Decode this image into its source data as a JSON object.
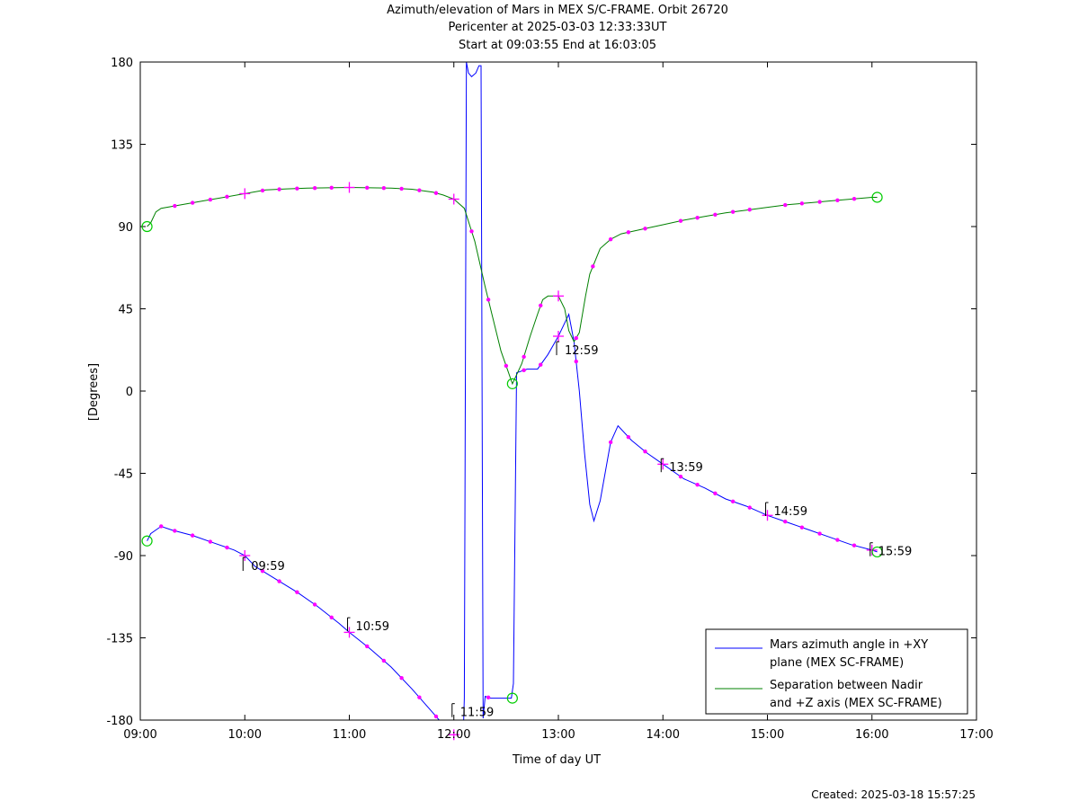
{
  "title": {
    "line1": "Azimuth/elevation of Mars in MEX S/C-FRAME.  Orbit 26720",
    "line2": "Pericenter at 2025-03-03 12:33:33UT",
    "line3": "Start at 09:03:55 End at 16:03:05"
  },
  "footer": "Created: 2025-03-18 15:57:25",
  "chart_data": {
    "type": "line",
    "xlabel": "Time of day UT",
    "ylabel": "[Degrees]",
    "xlim": [
      9,
      17
    ],
    "ylim": [
      -180,
      180
    ],
    "xticks": [
      9,
      10,
      11,
      12,
      13,
      14,
      15,
      16,
      17
    ],
    "xtick_labels": [
      "09:00",
      "10:00",
      "11:00",
      "12:00",
      "13:00",
      "14:00",
      "15:00",
      "16:00",
      "17:00"
    ],
    "yticks": [
      -180,
      -135,
      -90,
      -45,
      0,
      45,
      90,
      135,
      180
    ],
    "ytick_labels": [
      "-180",
      "-135",
      "-90",
      "-45",
      "0",
      "45",
      "90",
      "135",
      "180"
    ],
    "legend_position": "bottom-right",
    "series": [
      {
        "name": "Mars azimuth angle in +XY plane (MEX SC-FRAME)",
        "legend_lines": [
          "Mars azimuth angle in +XY",
          "plane (MEX SC-FRAME)"
        ],
        "color": "#0000ff",
        "x": [
          9.065,
          9.1,
          9.15,
          9.2,
          9.3,
          9.5,
          9.7,
          9.9,
          10.0,
          10.1,
          10.3,
          10.5,
          10.7,
          10.9,
          11.0,
          11.2,
          11.4,
          11.6,
          11.8,
          11.95,
          12.0,
          12.06,
          12.09,
          12.1,
          12.12,
          12.14,
          12.17,
          12.21,
          12.24,
          12.26,
          12.28,
          12.3,
          12.35,
          12.45,
          12.55,
          12.57,
          12.6,
          12.7,
          12.8,
          12.9,
          13.0,
          13.05,
          13.1,
          13.15,
          13.2,
          13.25,
          13.3,
          13.34,
          13.4,
          13.5,
          13.57,
          13.7,
          13.85,
          14.0,
          14.2,
          14.4,
          14.6,
          14.8,
          15.0,
          15.2,
          15.4,
          15.6,
          15.8,
          16.0,
          16.05
        ],
        "y": [
          -82,
          -78,
          -76,
          -74,
          -76,
          -79,
          -83,
          -87,
          -90,
          -96,
          -103,
          -110,
          -118,
          -127,
          -132,
          -141,
          -151,
          -163,
          -176,
          -186,
          -188,
          -190,
          -188,
          -168,
          180,
          174,
          172,
          174,
          178,
          178,
          -179,
          -167,
          -168,
          -168,
          -168,
          -160,
          10,
          12,
          12,
          20,
          30,
          36,
          42,
          27,
          0,
          -34,
          -62,
          -71,
          -60,
          -28,
          -19,
          -27,
          -34,
          -40,
          -48,
          -53,
          -59,
          -63,
          -68,
          -72,
          -76,
          -80,
          -84,
          -87,
          -88
        ]
      },
      {
        "name": "Separation between Nadir and +Z axis (MEX SC-FRAME)",
        "legend_lines": [
          "Separation between Nadir",
          "and +Z axis (MEX SC-FRAME)"
        ],
        "color": "#008000",
        "x": [
          9.065,
          9.1,
          9.15,
          9.2,
          9.4,
          9.6,
          9.8,
          10.0,
          10.2,
          10.4,
          10.6,
          10.8,
          11.0,
          11.2,
          11.4,
          11.6,
          11.8,
          11.9,
          12.0,
          12.1,
          12.2,
          12.3,
          12.45,
          12.56,
          12.65,
          12.73,
          12.8,
          12.85,
          12.9,
          13.0,
          13.06,
          13.1,
          13.15,
          13.2,
          13.26,
          13.3,
          13.4,
          13.5,
          13.6,
          13.8,
          14.0,
          14.2,
          14.4,
          14.6,
          14.8,
          15.0,
          15.2,
          15.4,
          15.6,
          15.8,
          16.0,
          16.05
        ],
        "y": [
          90,
          92,
          98,
          100,
          102,
          104,
          106,
          108,
          110,
          110.6,
          111,
          111.2,
          111.4,
          111.2,
          111,
          110.4,
          108.8,
          107.2,
          105,
          100,
          82,
          57,
          22,
          4,
          15,
          30,
          42,
          50,
          52,
          52,
          45,
          33,
          27,
          32,
          52,
          64,
          78,
          83,
          86,
          88.5,
          91,
          93.5,
          95.5,
          97.5,
          99,
          100.5,
          102,
          103,
          104,
          105,
          106,
          106
        ]
      }
    ],
    "marker_color": "#ff00ff",
    "circle_color": "#00cc00",
    "markers": {
      "azimuth_x": [
        9.2,
        9.33,
        9.5,
        9.67,
        9.83,
        10.17,
        10.33,
        10.5,
        10.67,
        10.83,
        11.17,
        11.33,
        11.5,
        11.67,
        11.83,
        12.33,
        12.67,
        12.83,
        13.17,
        13.5,
        13.67,
        13.83,
        14.17,
        14.33,
        14.5,
        14.67,
        14.83,
        15.17,
        15.33,
        15.5,
        15.67,
        15.83
      ],
      "nadir_x": [
        9.33,
        9.5,
        9.67,
        9.83,
        10.17,
        10.33,
        10.5,
        10.67,
        10.83,
        11.17,
        11.33,
        11.5,
        11.67,
        11.83,
        12.17,
        12.33,
        12.5,
        12.67,
        12.83,
        13.17,
        13.33,
        13.5,
        13.67,
        13.83,
        14.17,
        14.33,
        14.5,
        14.67,
        14.83,
        15.17,
        15.33,
        15.5,
        15.67,
        15.83
      ],
      "azimuth_plus_x": [
        10.0,
        11.0,
        12.0,
        13.0,
        14.0,
        15.0,
        16.0
      ],
      "nadir_plus_x": [
        10.0,
        11.0,
        12.0,
        13.0
      ],
      "circles": [
        {
          "x": 9.065,
          "y": -82
        },
        {
          "x": 9.065,
          "y": 90
        },
        {
          "x": 12.56,
          "y": 4
        },
        {
          "x": 12.56,
          "y": -168
        },
        {
          "x": 16.05,
          "y": -88
        },
        {
          "x": 16.05,
          "y": 106
        }
      ]
    },
    "annotations": [
      {
        "text": "09:59",
        "x": 9.983,
        "y": -90
      },
      {
        "text": "10:59",
        "x": 10.983,
        "y": -123
      },
      {
        "text": "11:59",
        "x": 11.983,
        "y": -170
      },
      {
        "text": "12:59",
        "x": 12.983,
        "y": 28
      },
      {
        "text": "13:59",
        "x": 13.983,
        "y": -36
      },
      {
        "text": "14:59",
        "x": 14.983,
        "y": -60
      },
      {
        "text": "15:59",
        "x": 15.983,
        "y": -82
      }
    ]
  }
}
